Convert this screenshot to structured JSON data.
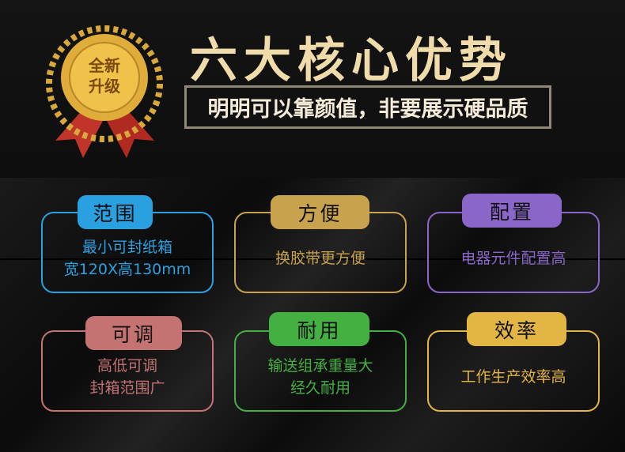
{
  "header": {
    "title": "六大核心优势",
    "subtitle": "明明可以靠颜值，非要展示硬品质",
    "medal_text": [
      "全新",
      "升级"
    ]
  },
  "cards": [
    {
      "label": "范围",
      "lines": [
        "最小可封纸箱",
        "宽120X高130mm"
      ],
      "color": "#2aa0e0"
    },
    {
      "label": "方便",
      "lines": [
        "换胶带更方便"
      ],
      "color": "#c9a24e"
    },
    {
      "label": "配置",
      "lines": [
        "电器元件配置高"
      ],
      "color": "#8a66c8"
    },
    {
      "label": "可调",
      "lines": [
        "高低可调",
        "封箱范围广"
      ],
      "color": "#c47272"
    },
    {
      "label": "耐用",
      "lines": [
        "输送组承重量大",
        "经久耐用"
      ],
      "color": "#45b042"
    },
    {
      "label": "效率",
      "lines": [
        "工作生产效率高"
      ],
      "color": "#e2b545"
    }
  ]
}
